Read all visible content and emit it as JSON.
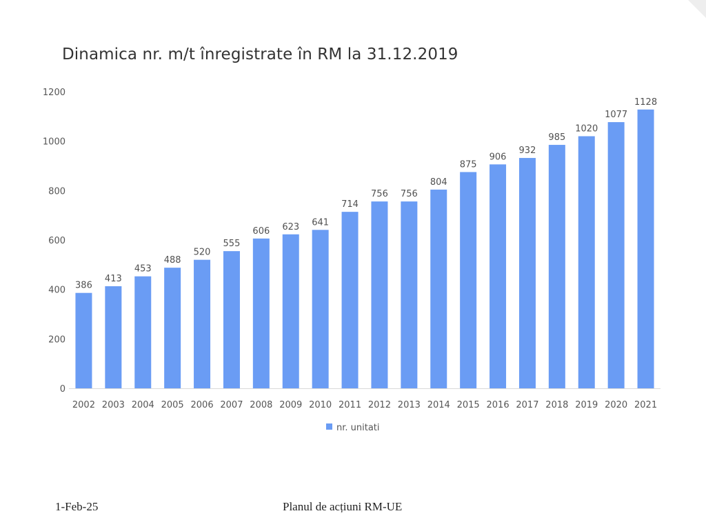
{
  "slide": {
    "footer_date": "1-Feb-25",
    "footer_center": "Planul de acțiuni RM-UE"
  },
  "chart_data": {
    "type": "bar",
    "title": "Dinamica nr. m/t înregistrate în RM la 31.12.2019",
    "xlabel": "",
    "ylabel": "",
    "categories": [
      "2002",
      "2003",
      "2004",
      "2005",
      "2006",
      "2007",
      "2008",
      "2009",
      "2010",
      "2011",
      "2012",
      "2013",
      "2014",
      "2015",
      "2016",
      "2017",
      "2018",
      "2019",
      "2020",
      "2021"
    ],
    "series": [
      {
        "name": "nr. unitati",
        "color": "#6a9cf4",
        "values": [
          386,
          413,
          453,
          488,
          520,
          555,
          606,
          623,
          641,
          714,
          756,
          756,
          804,
          875,
          906,
          932,
          985,
          1020,
          1077,
          1128
        ]
      }
    ],
    "ylim": [
      0,
      1200
    ],
    "yticks": [
      "0",
      "200",
      "400",
      "600",
      "800",
      "1000",
      "1200"
    ],
    "grid": false,
    "legend_position": "bottom",
    "data_labels": true
  }
}
